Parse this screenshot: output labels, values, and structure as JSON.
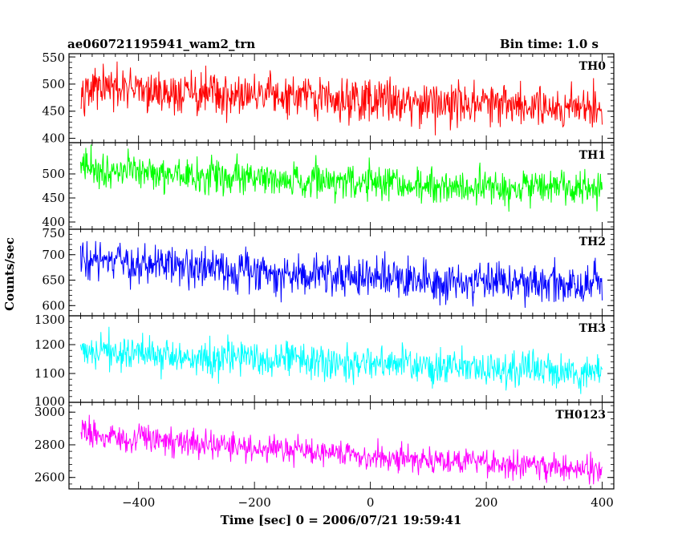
{
  "chart_data": {
    "type": "line",
    "title": "ae060721195941_wam2_trn",
    "bin_time_label": "Bin time: 1.0 s",
    "xlabel": "Time [sec] 0 = 2006/07/21 19:59:41",
    "ylabel": "Counts/sec",
    "xlim": [
      -520,
      420
    ],
    "x_ticks": [
      -400,
      -200,
      0,
      200,
      400
    ],
    "x_tick_labels": [
      "−400",
      "−200",
      "0",
      "200",
      "400"
    ],
    "x_range": [
      -500,
      400
    ],
    "bin_time": 1.0,
    "grid": false,
    "panels": [
      {
        "name": "TH0",
        "color": "#ff0000",
        "ylim": [
          392,
          556
        ],
        "yticks": [
          400,
          450,
          500,
          550
        ],
        "ytick_labels": [
          "400",
          "450",
          "500",
          "550"
        ],
        "mean_start": 495,
        "mean_end": 458,
        "amplitude": 32
      },
      {
        "name": "TH1",
        "color": "#00ff00",
        "ylim": [
          385,
          565
        ],
        "yticks": [
          400,
          450,
          500
        ],
        "ytick_labels": [
          "400",
          "450",
          "500"
        ],
        "mean_start": 515,
        "mean_end": 465,
        "amplitude": 30
      },
      {
        "name": "TH2",
        "color": "#0000ff",
        "ylim": [
          580,
          750
        ],
        "yticks": [
          600,
          650,
          700,
          750
        ],
        "ytick_labels": [
          "600",
          "650",
          "700",
          "750"
        ],
        "mean_start": 690,
        "mean_end": 640,
        "amplitude": 32
      },
      {
        "name": "TH3",
        "color": "#00ffff",
        "ylim": [
          1000,
          1300
        ],
        "yticks": [
          1000,
          1100,
          1200,
          1300
        ],
        "ytick_labels": [
          "1000",
          "1100",
          "1200",
          "1300"
        ],
        "mean_start": 1185,
        "mean_end": 1105,
        "amplitude": 50
      },
      {
        "name": "TH0123",
        "color": "#ff00ff",
        "ylim": [
          2530,
          3060
        ],
        "yticks": [
          2600,
          2800,
          3000
        ],
        "ytick_labels": [
          "2600",
          "2800",
          "3000"
        ],
        "mean_start": 2890,
        "mean_end": 2650,
        "amplitude": 65
      }
    ]
  }
}
